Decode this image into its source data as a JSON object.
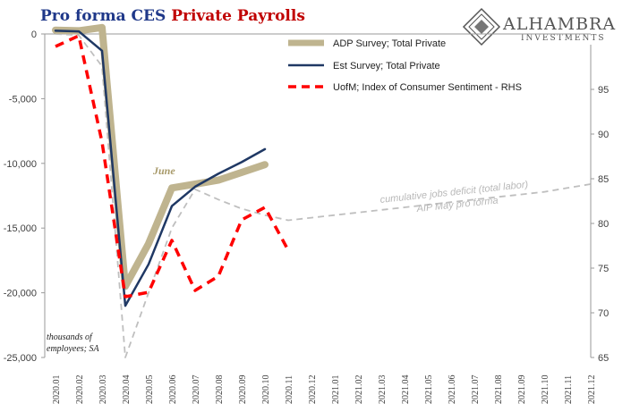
{
  "title": {
    "part1": "Pro forma CES ",
    "part2": "Private Payrolls"
  },
  "logo": {
    "name": "ALHAMBRA",
    "sub": "INVESTMENTS"
  },
  "colors": {
    "adp": "#bfb48f",
    "est": "#1f3864",
    "uofm": "#ff0000",
    "pro_forma": "#bfbfbf",
    "title_blue": "#1f3889",
    "title_red": "#c00000"
  },
  "units_note": {
    "line1": "thousands of",
    "line2": "employees; SA"
  },
  "annotations": {
    "june": "June",
    "deficit": "cumulative jobs deficit (total labor)",
    "proforma": "AIP May pro forma"
  },
  "chart_data": {
    "type": "line",
    "x": [
      "2020.01",
      "2020.02",
      "2020.03",
      "2020.04",
      "2020.05",
      "2020.06",
      "2020.07",
      "2020.08",
      "2020.09",
      "2020.10",
      "2020.11",
      "2020.12",
      "2021.01",
      "2021.02",
      "2021.03",
      "2021.04",
      "2021.05",
      "2021.06",
      "2021.07",
      "2021.08",
      "2021.09",
      "2021.10",
      "2021.11",
      "2021.12"
    ],
    "ylim": [
      -25000,
      0
    ],
    "yticks": [
      0,
      -5000,
      -10000,
      -15000,
      -20000,
      -25000
    ],
    "ytick_labels": [
      "0",
      "-5,000",
      "-10,000",
      "-15,000",
      "-20,000",
      "-25,000"
    ],
    "y2lim": [
      65,
      100
    ],
    "y2ticks": [
      65,
      70,
      75,
      80,
      85,
      90,
      95
    ],
    "series": [
      {
        "name": "ADP Survey; Total Private",
        "axis": "left",
        "color": "#bfb48f",
        "values": [
          300,
          250,
          500,
          -19500,
          -16200,
          -11900,
          -11600,
          -11300,
          -10700,
          -10100,
          null,
          null,
          null,
          null,
          null,
          null,
          null,
          null,
          null,
          null,
          null,
          null,
          null,
          null
        ]
      },
      {
        "name": "Est Survey; Total Private",
        "axis": "left",
        "color": "#1f3864",
        "values": [
          250,
          200,
          -1300,
          -21000,
          -17800,
          -13300,
          -11800,
          -10800,
          -9900,
          -8900,
          null,
          null,
          null,
          null,
          null,
          null,
          null,
          null,
          null,
          null,
          null,
          null,
          null,
          null
        ]
      },
      {
        "name": "UofM; Index of Consumer Sentiment - RHS",
        "axis": "right",
        "color": "#ff0000",
        "values": [
          99.8,
          101.0,
          89.1,
          71.8,
          72.3,
          78.1,
          72.5,
          74.1,
          80.4,
          81.8,
          77.0,
          null,
          null,
          null,
          null,
          null,
          null,
          null,
          null,
          null,
          null,
          null,
          null,
          null
        ]
      },
      {
        "name": "AIP May pro forma",
        "axis": "left",
        "color": "#bfbfbf",
        "dashed": true,
        "values": [
          0,
          -100,
          -2500,
          -25000,
          -20000,
          -15000,
          -12000,
          -12800,
          -13500,
          -14000,
          -14400,
          -14200,
          -14000,
          -13800,
          -13600,
          -13400,
          -13200,
          -13000,
          -12800,
          -12600,
          -12400,
          -12200,
          -11900,
          -11600
        ]
      }
    ]
  }
}
